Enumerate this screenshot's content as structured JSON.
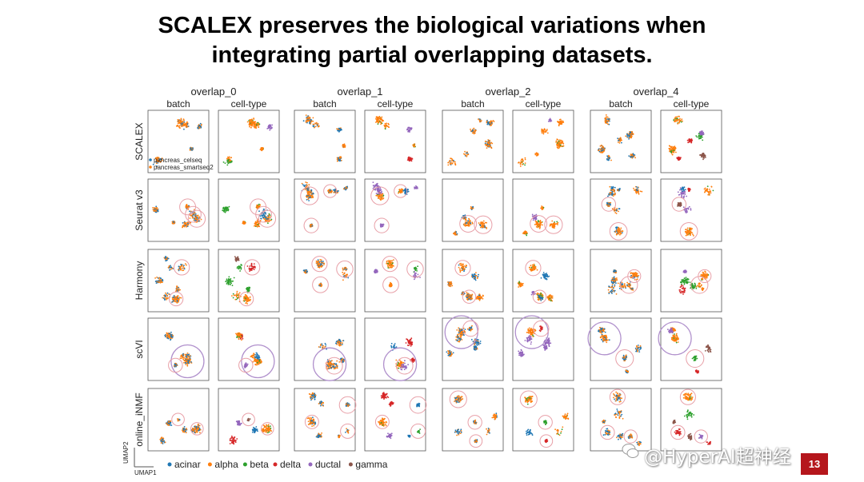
{
  "slide": {
    "title_line1": "SCALEX preserves the biological variations when",
    "title_line2": "integrating partial overlapping datasets.",
    "page_number": "13",
    "watermark": "@HyperAI超神经"
  },
  "figure": {
    "group_labels": [
      "overlap_0",
      "overlap_1",
      "overlap_2",
      "overlap_4"
    ],
    "column_labels": [
      "batch",
      "cell-type"
    ],
    "row_labels": [
      "SCALEX",
      "Seurat v3",
      "Harmony",
      "scVI",
      "online_iNMF"
    ],
    "axis_y": "UMAP2",
    "axis_x": "UMAP1",
    "batch_legend": [
      {
        "label": "pancreas_celseq",
        "color": "#1f77b4"
      },
      {
        "label": "pancreas_smartseq2",
        "color": "#ff7f0e"
      }
    ],
    "celltype_legend": [
      {
        "label": "acinar",
        "color": "#1f77b4"
      },
      {
        "label": "alpha",
        "color": "#ff7f0e"
      },
      {
        "label": "beta",
        "color": "#2ca02c"
      },
      {
        "label": "delta",
        "color": "#d62728"
      },
      {
        "label": "ductal",
        "color": "#9467bd"
      },
      {
        "label": "gamma",
        "color": "#8c564b"
      }
    ],
    "highlight_colors": {
      "small": "#e8a0a8",
      "large": "#b090cc"
    }
  }
}
